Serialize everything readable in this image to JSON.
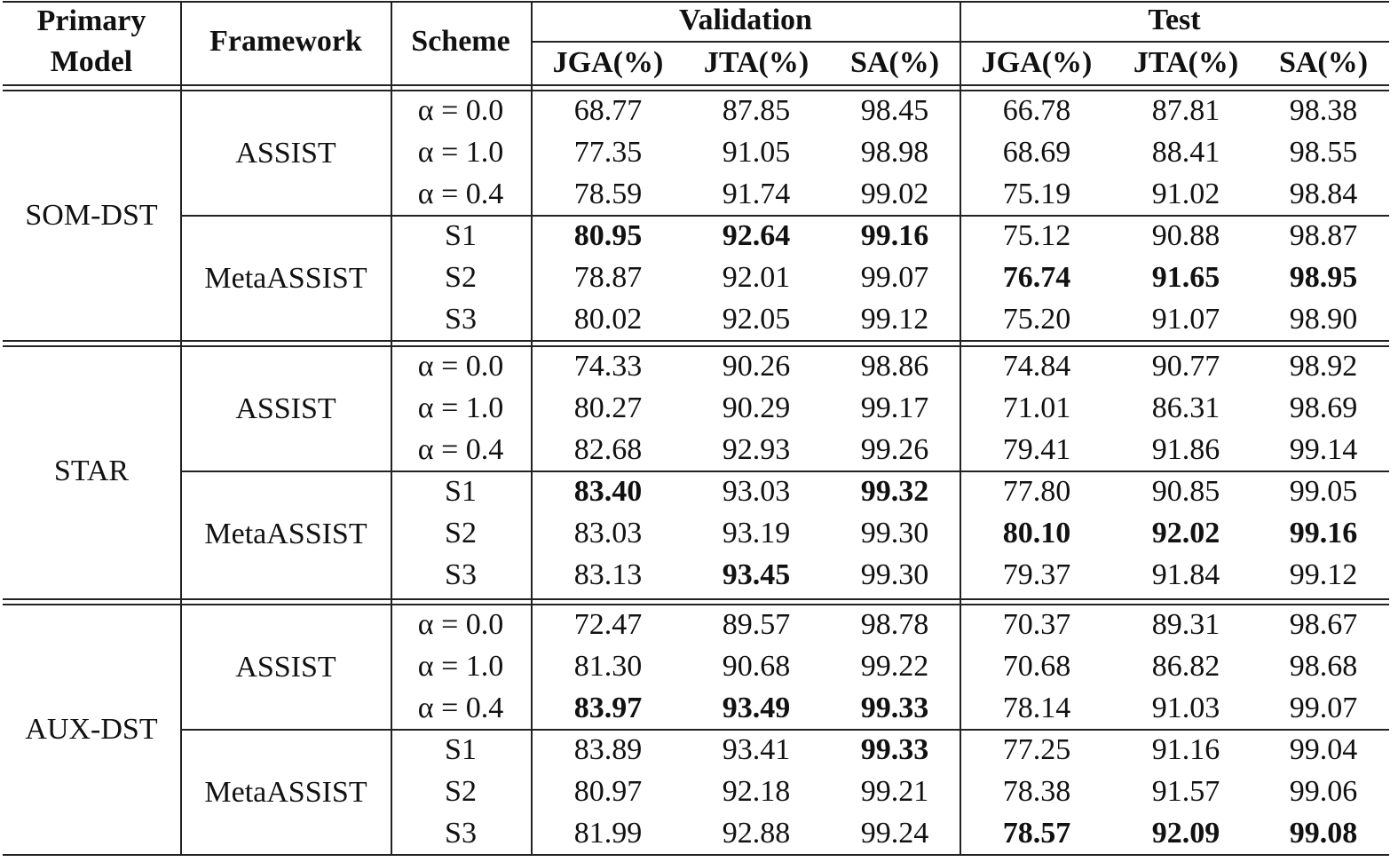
{
  "header": {
    "primary_model": "Primary Model",
    "framework": "Framework",
    "scheme": "Scheme",
    "validation": "Validation",
    "test": "Test",
    "metrics": [
      "JGA(%)",
      "JTA(%)",
      "SA(%)",
      "JGA(%)",
      "JTA(%)",
      "SA(%)"
    ]
  },
  "groups": [
    {
      "model": "SOM-DST",
      "frameworks": [
        {
          "name": "ASSIST",
          "rows": [
            {
              "scheme": "α = 0.0",
              "values": [
                "68.77",
                "87.85",
                "98.45",
                "66.78",
                "87.81",
                "98.38"
              ],
              "bold": []
            },
            {
              "scheme": "α = 1.0",
              "values": [
                "77.35",
                "91.05",
                "98.98",
                "68.69",
                "88.41",
                "98.55"
              ],
              "bold": []
            },
            {
              "scheme": "α = 0.4",
              "values": [
                "78.59",
                "91.74",
                "99.02",
                "75.19",
                "91.02",
                "98.84"
              ],
              "bold": []
            }
          ]
        },
        {
          "name": "MetaASSIST",
          "rows": [
            {
              "scheme": "S1",
              "values": [
                "80.95",
                "92.64",
                "99.16",
                "75.12",
                "90.88",
                "98.87"
              ],
              "bold": [
                0,
                1,
                2
              ]
            },
            {
              "scheme": "S2",
              "values": [
                "78.87",
                "92.01",
                "99.07",
                "76.74",
                "91.65",
                "98.95"
              ],
              "bold": [
                3,
                4,
                5
              ]
            },
            {
              "scheme": "S3",
              "values": [
                "80.02",
                "92.05",
                "99.12",
                "75.20",
                "91.07",
                "98.90"
              ],
              "bold": []
            }
          ]
        }
      ]
    },
    {
      "model": "STAR",
      "frameworks": [
        {
          "name": "ASSIST",
          "rows": [
            {
              "scheme": "α = 0.0",
              "values": [
                "74.33",
                "90.26",
                "98.86",
                "74.84",
                "90.77",
                "98.92"
              ],
              "bold": []
            },
            {
              "scheme": "α = 1.0",
              "values": [
                "80.27",
                "90.29",
                "99.17",
                "71.01",
                "86.31",
                "98.69"
              ],
              "bold": []
            },
            {
              "scheme": "α = 0.4",
              "values": [
                "82.68",
                "92.93",
                "99.26",
                "79.41",
                "91.86",
                "99.14"
              ],
              "bold": []
            }
          ]
        },
        {
          "name": "MetaASSIST",
          "rows": [
            {
              "scheme": "S1",
              "values": [
                "83.40",
                "93.03",
                "99.32",
                "77.80",
                "90.85",
                "99.05"
              ],
              "bold": [
                0,
                2
              ]
            },
            {
              "scheme": "S2",
              "values": [
                "83.03",
                "93.19",
                "99.30",
                "80.10",
                "92.02",
                "99.16"
              ],
              "bold": [
                3,
                4,
                5
              ]
            },
            {
              "scheme": "S3",
              "values": [
                "83.13",
                "93.45",
                "99.30",
                "79.37",
                "91.84",
                "99.12"
              ],
              "bold": [
                1
              ]
            }
          ]
        }
      ]
    },
    {
      "model": "AUX-DST",
      "frameworks": [
        {
          "name": "ASSIST",
          "rows": [
            {
              "scheme": "α = 0.0",
              "values": [
                "72.47",
                "89.57",
                "98.78",
                "70.37",
                "89.31",
                "98.67"
              ],
              "bold": []
            },
            {
              "scheme": "α = 1.0",
              "values": [
                "81.30",
                "90.68",
                "99.22",
                "70.68",
                "86.82",
                "98.68"
              ],
              "bold": []
            },
            {
              "scheme": "α = 0.4",
              "values": [
                "83.97",
                "93.49",
                "99.33",
                "78.14",
                "91.03",
                "99.07"
              ],
              "bold": [
                0,
                1,
                2
              ]
            }
          ]
        },
        {
          "name": "MetaASSIST",
          "rows": [
            {
              "scheme": "S1",
              "values": [
                "83.89",
                "93.41",
                "99.33",
                "77.25",
                "91.16",
                "99.04"
              ],
              "bold": [
                2
              ]
            },
            {
              "scheme": "S2",
              "values": [
                "80.97",
                "92.18",
                "99.21",
                "78.38",
                "91.57",
                "99.06"
              ],
              "bold": []
            },
            {
              "scheme": "S3",
              "values": [
                "81.99",
                "92.88",
                "99.24",
                "78.57",
                "92.09",
                "99.08"
              ],
              "bold": [
                3,
                4,
                5
              ]
            }
          ]
        }
      ]
    }
  ]
}
